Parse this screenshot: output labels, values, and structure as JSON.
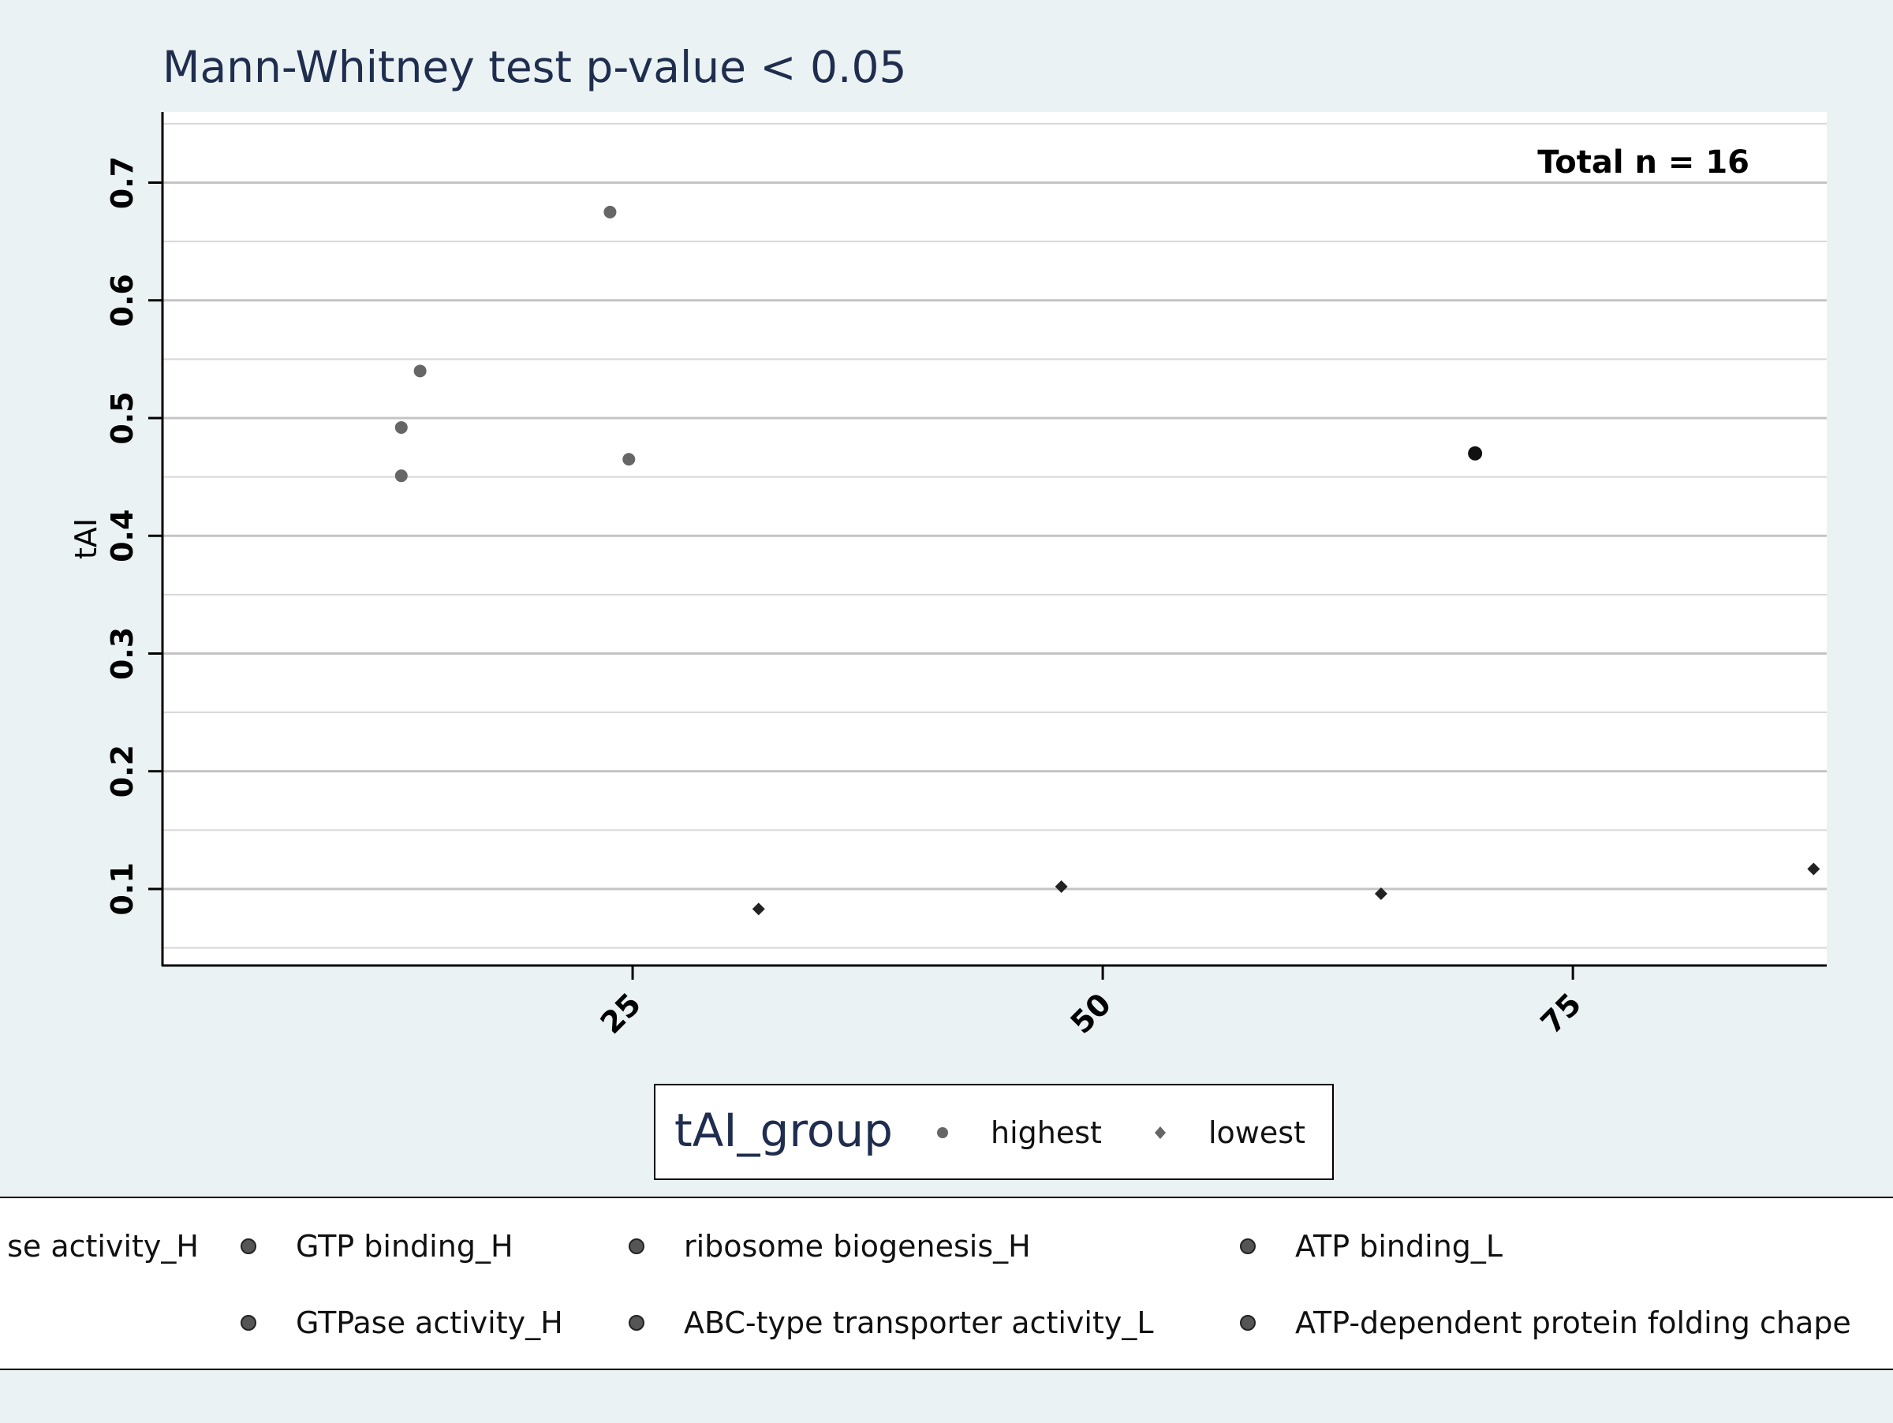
{
  "chart_data": {
    "type": "scatter",
    "title": "Mann-Whitney test  p-value < 0.05",
    "xlabel": "",
    "ylabel": "tAI",
    "annotation": "Total n = 16",
    "xlim": [
      0,
      88.5
    ],
    "ylim": [
      0.035,
      0.76
    ],
    "x_ticks": [
      25,
      50,
      75
    ],
    "y_ticks": [
      0.1,
      0.2,
      0.3,
      0.4,
      0.5,
      0.6,
      0.7
    ],
    "grid": true,
    "group_legend": {
      "title": "tAI_group",
      "entries": [
        {
          "label": "highest",
          "marker": "circle"
        },
        {
          "label": "lowest",
          "marker": "diamond"
        }
      ]
    },
    "category_legend": {
      "entries": [
        "se activity_H",
        "GTP binding_H",
        "ribosome biogenesis_H",
        "ATP binding_L",
        "GTPase activity_H",
        "ABC-type transporter activity_L",
        "ATP-dependent protein folding chape"
      ]
    },
    "series": [
      {
        "marker": "circle",
        "color": "#666666",
        "points": [
          {
            "x": 23.8,
            "y": 0.675
          },
          {
            "x": 13.7,
            "y": 0.54
          },
          {
            "x": 12.7,
            "y": 0.492
          },
          {
            "x": 12.7,
            "y": 0.451
          },
          {
            "x": 24.8,
            "y": 0.465
          }
        ]
      },
      {
        "marker": "circle",
        "color": "#111111",
        "points": [
          {
            "x": 69.8,
            "y": 0.47
          }
        ]
      },
      {
        "marker": "diamond",
        "color": "#222222",
        "points": [
          {
            "x": 31.7,
            "y": 0.083
          },
          {
            "x": 47.8,
            "y": 0.102
          },
          {
            "x": 64.8,
            "y": 0.096
          },
          {
            "x": 87.8,
            "y": 0.117
          }
        ]
      }
    ]
  }
}
